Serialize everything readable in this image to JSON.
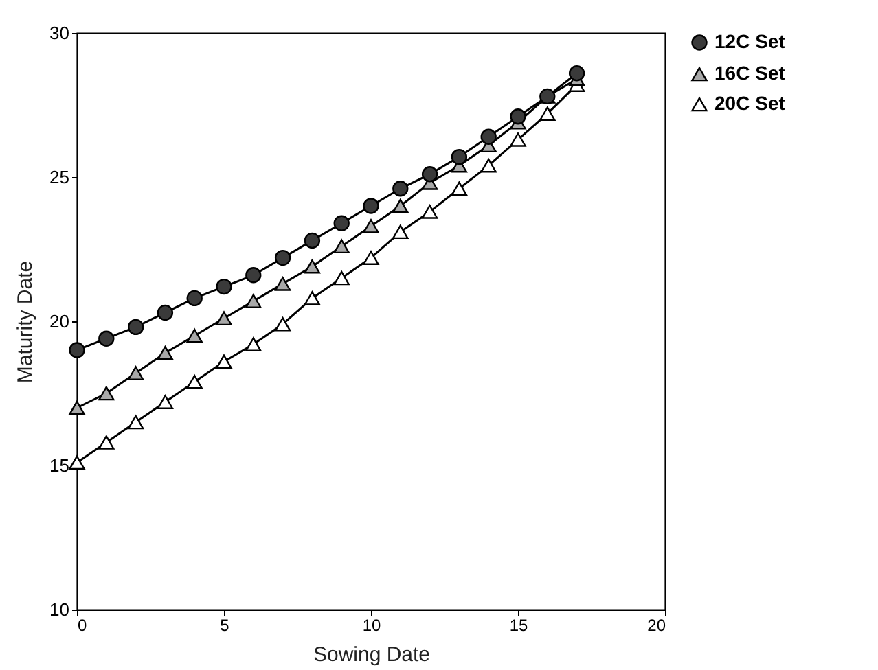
{
  "chart_data": {
    "type": "line",
    "xlabel": "Sowing Date",
    "ylabel": "Maturity Date",
    "x": [
      0,
      1,
      2,
      3,
      4,
      5,
      6,
      7,
      8,
      9,
      10,
      11,
      12,
      13,
      14,
      15,
      16,
      17
    ],
    "series": [
      {
        "name": "12C Set",
        "color": "#3a3a3a",
        "marker": "circle",
        "values": [
          19.0,
          19.4,
          19.8,
          20.3,
          20.8,
          21.2,
          21.6,
          22.2,
          22.8,
          23.4,
          24.0,
          24.6,
          25.1,
          25.7,
          26.4,
          27.1,
          27.8,
          28.6
        ]
      },
      {
        "name": "16C Set",
        "color": "#a8a8a8",
        "marker": "triangle",
        "values": [
          17.0,
          17.5,
          18.2,
          18.9,
          19.5,
          20.1,
          20.7,
          21.3,
          21.9,
          22.6,
          23.3,
          24.0,
          24.8,
          25.4,
          26.1,
          26.9,
          27.8,
          28.4
        ]
      },
      {
        "name": "20C Set",
        "color": "#ffffff",
        "marker": "triangle",
        "values": [
          15.1,
          15.8,
          16.5,
          17.2,
          17.9,
          18.6,
          19.2,
          19.9,
          20.8,
          21.5,
          22.2,
          23.1,
          23.8,
          24.6,
          25.4,
          26.3,
          27.2,
          28.2
        ]
      }
    ],
    "xlim": [
      0,
      20
    ],
    "xticks": [
      0,
      5,
      10,
      15,
      20
    ],
    "ylim": [
      10,
      30
    ],
    "yticks": [
      10,
      15,
      20,
      25,
      30
    ],
    "legend": "right",
    "line_style": "solid"
  }
}
